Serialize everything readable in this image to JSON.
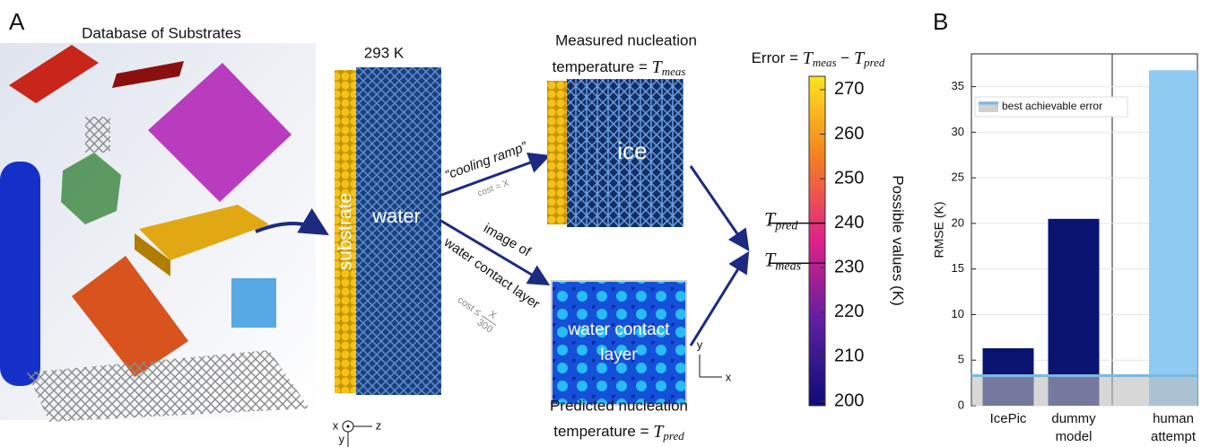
{
  "panel_a": {
    "label": "A",
    "database_title": "Database of Substrates",
    "temperature": "293 K",
    "substrate": "substrate",
    "water": "water",
    "axes_left": {
      "x": "x",
      "z": "z",
      "y": "y"
    },
    "cooling_ramp": "“cooling ramp”",
    "cost_cooling": "cost = X",
    "image_of": "image of",
    "water_contact_layer_arrow": "water contact layer",
    "cost_image": {
      "prefix": "cost ≤",
      "numerator": "X",
      "denominator": "300"
    },
    "measured": {
      "line1": "Measured nucleation",
      "line2": "temperature = ",
      "symbol": "T",
      "subscript": "meas"
    },
    "ice": "ice",
    "contact_image": [
      "water contact",
      "layer"
    ],
    "axes_right": {
      "y": "y",
      "x": "x"
    },
    "predicted": {
      "line1": "Predicted nucleation",
      "line2": "temperature = ",
      "symbol": "T",
      "subscript": "pred"
    },
    "error": {
      "prefix": "Error = ",
      "t1": "T",
      "s1": "meas",
      "minus": " − ",
      "t2": "T",
      "s2": "pred"
    },
    "colorbar": {
      "label": "Possible values (K)",
      "lim": [
        199,
        273
      ],
      "ticks": [
        200,
        210,
        220,
        230,
        240,
        250,
        260,
        270
      ],
      "markers": [
        {
          "symbol": "T",
          "subscript": "pred",
          "value": 240
        },
        {
          "symbol": "T",
          "subscript": "meas",
          "value": 231
        }
      ]
    }
  },
  "chart_data": {
    "type": "bar",
    "panel_label": "B",
    "y_label": "RMSE (K)",
    "categories": [
      "IcePic",
      "dummy model",
      "human attempt"
    ],
    "values": [
      6.3,
      20.5,
      36.8
    ],
    "colors": [
      "#0b1470",
      "#0b1470",
      "#8fcaf2"
    ],
    "ylim": [
      0,
      38.6
    ],
    "yticks": [
      0,
      5,
      10,
      15,
      20,
      25,
      30,
      35
    ],
    "grid": true,
    "reference_line": {
      "value": 3.3,
      "label": "best achievable error",
      "color": "#7ab8e0"
    }
  }
}
